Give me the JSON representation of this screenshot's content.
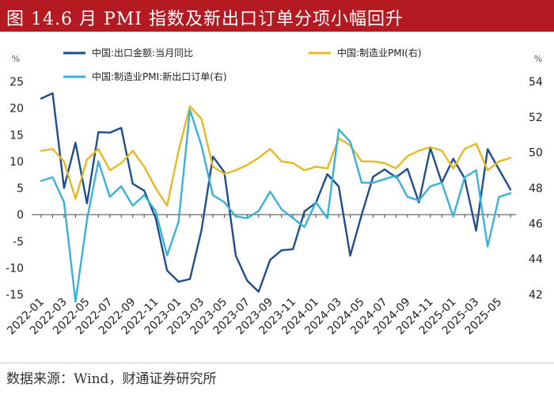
{
  "header": {
    "title": "图 14.6 月 PMI 指数及新出口订单分项小幅回升"
  },
  "footer": {
    "source": "数据来源：Wind，财通证券研究所"
  },
  "chart_data": {
    "type": "line",
    "title": "图 14.6 月 PMI 指数及新出口订单分项小幅回升",
    "left_axis": {
      "unit": "%",
      "ylim": [
        -15,
        25
      ],
      "ticks": [
        25,
        20,
        15,
        10,
        5,
        0,
        -5,
        -10,
        -15
      ]
    },
    "right_axis": {
      "unit": "%",
      "ylim": [
        42,
        54
      ],
      "ticks": [
        54,
        52,
        50,
        48,
        46,
        44,
        42
      ]
    },
    "x": [
      "2022-01",
      "2022-02",
      "2022-03",
      "2022-04",
      "2022-05",
      "2022-06",
      "2022-07",
      "2022-08",
      "2022-09",
      "2022-10",
      "2022-11",
      "2022-12",
      "2023-01",
      "2023-02",
      "2023-03",
      "2023-04",
      "2023-05",
      "2023-06",
      "2023-07",
      "2023-08",
      "2023-09",
      "2023-10",
      "2023-11",
      "2023-12",
      "2024-01",
      "2024-02",
      "2024-03",
      "2024-04",
      "2024-05",
      "2024-06",
      "2024-07",
      "2024-08",
      "2024-09",
      "2024-10",
      "2024-11",
      "2024-12",
      "2025-01",
      "2025-02",
      "2025-03",
      "2025-04",
      "2025-05",
      "2025-06"
    ],
    "x_tick_labels": [
      "2022-01",
      "2022-03",
      "2022-05",
      "2022-07",
      "2022-09",
      "2022-11",
      "2023-01",
      "2023-03",
      "2023-05",
      "2023-07",
      "2023-09",
      "2023-11",
      "2024-01",
      "2024-03",
      "2024-05",
      "2024-07",
      "2024-09",
      "2024-11",
      "2025-01",
      "2025-03",
      "2025-05"
    ],
    "series": [
      {
        "name": "中国:出口金额:当月同比",
        "axis": "left",
        "color": "#1f4e8c",
        "values": [
          21.8,
          22.8,
          5.0,
          13.5,
          2.1,
          15.5,
          15.4,
          16.3,
          5.8,
          4.5,
          -0.6,
          -10.5,
          -12.6,
          -12.1,
          -3.0,
          10.9,
          8.0,
          -7.7,
          -12.4,
          -14.5,
          -8.5,
          -6.7,
          -6.5,
          0.6,
          2.2,
          7.6,
          5.3,
          -7.7,
          0.0,
          7.1,
          8.5,
          7.0,
          8.6,
          2.3,
          12.5,
          6.0,
          10.5,
          6.8,
          -3.0,
          12.3,
          8.5,
          4.7
        ]
      },
      {
        "name": "中国:制造业PMI(右)",
        "axis": "right",
        "color": "#e8b820",
        "values": [
          50.1,
          50.2,
          49.5,
          47.4,
          49.6,
          50.2,
          49.0,
          49.4,
          50.1,
          49.2,
          48.0,
          47.0,
          50.1,
          52.6,
          51.9,
          49.2,
          48.8,
          49.0,
          49.3,
          49.7,
          50.2,
          49.5,
          49.4,
          49.0,
          49.2,
          49.1,
          50.8,
          50.4,
          49.5,
          49.5,
          49.4,
          49.1,
          49.8,
          50.1,
          50.3,
          50.1,
          49.1,
          50.2,
          50.5,
          49.0,
          49.5,
          49.7
        ]
      },
      {
        "name": "中国:制造业PMI:新出口订单(右)",
        "axis": "right",
        "color": "#38b2dc",
        "values": [
          48.4,
          48.6,
          47.2,
          41.6,
          46.2,
          49.5,
          47.5,
          48.1,
          47.0,
          47.6,
          46.7,
          44.2,
          46.1,
          52.4,
          50.4,
          47.6,
          47.2,
          46.4,
          46.3,
          46.7,
          47.8,
          46.8,
          46.3,
          45.8,
          47.2,
          46.3,
          51.3,
          50.6,
          48.3,
          48.3,
          48.5,
          48.7,
          47.5,
          47.3,
          48.1,
          48.3,
          46.4,
          48.6,
          49.0,
          44.7,
          47.5,
          47.7
        ]
      }
    ]
  }
}
